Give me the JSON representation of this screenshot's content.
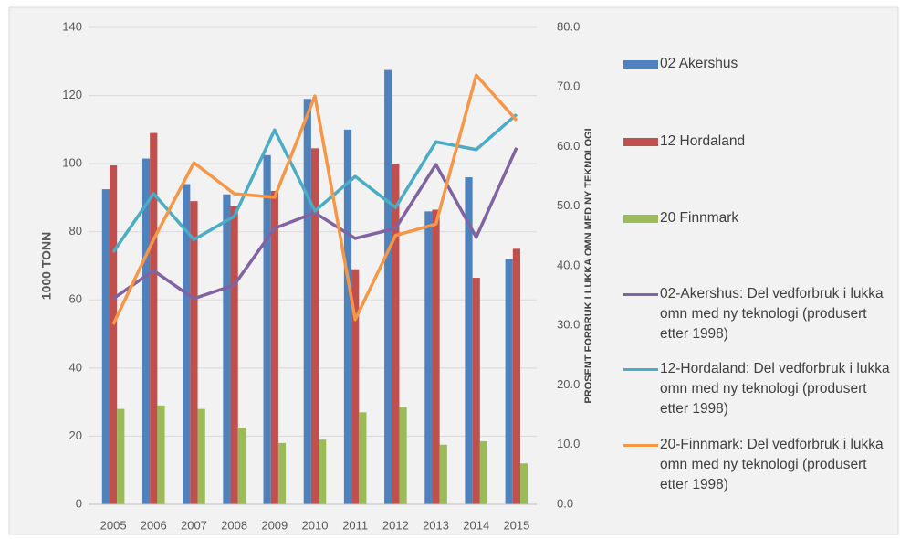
{
  "chart_data": {
    "type": "bar",
    "ylabel": "1000 TONN",
    "y2label": "PROSENT FORBRUK  I LUKKA OMN MED NY TEKNOLOGI",
    "categories": [
      "2005",
      "2006",
      "2007",
      "2008",
      "2009",
      "2010",
      "2011",
      "2012",
      "2013",
      "2014",
      "2015"
    ],
    "ylim": [
      0,
      140
    ],
    "yticks": [
      0,
      20,
      40,
      60,
      80,
      100,
      120,
      140
    ],
    "y2lim": [
      0,
      80
    ],
    "y2ticks": [
      {
        "value": 0,
        "label": "0.0"
      },
      {
        "value": 10,
        "label": "10.0"
      },
      {
        "value": 20,
        "label": "20.0"
      },
      {
        "value": 30,
        "label": "30.0"
      },
      {
        "value": 40,
        "label": "40.0"
      },
      {
        "value": 50,
        "label": "50.0"
      },
      {
        "value": 60,
        "label": "60.0"
      },
      {
        "value": 70,
        "label": "70.0"
      },
      {
        "value": 80,
        "label": "80.0"
      }
    ],
    "grid": true,
    "series": [
      {
        "name": "02 Akershus",
        "type": "bar",
        "color": "#4f81bd",
        "values": [
          92.5,
          101.5,
          94,
          91,
          102.5,
          119,
          110,
          127.5,
          86,
          96,
          72
        ]
      },
      {
        "name": "12 Hordaland",
        "type": "bar",
        "color": "#c0504d",
        "values": [
          99.5,
          109,
          89,
          87.5,
          92,
          104.5,
          69,
          100,
          86.5,
          66.5,
          75
        ]
      },
      {
        "name": "20 Finnmark",
        "type": "bar",
        "color": "#9bbb59",
        "values": [
          28,
          29,
          28,
          22.5,
          18,
          19,
          27,
          28.5,
          17.5,
          18.5,
          12
        ]
      },
      {
        "name": "02-Akershus: Del vedforbruk i lukka omn med ny teknologi (produsert etter 1998)",
        "type": "line",
        "axis": "y2",
        "color": "#8064a2",
        "values": [
          34.5,
          39.2,
          34.5,
          36.8,
          46.3,
          48.9,
          44.6,
          46.3,
          57,
          44.8,
          59.8
        ]
      },
      {
        "name": "12-Hordaland: Del vedforbruk i lukka omn med ny teknologi (produsert etter 1998)",
        "type": "line",
        "axis": "y2",
        "color": "#4bacc6",
        "values": [
          42.3,
          52.1,
          44.4,
          48.3,
          62.8,
          49.2,
          55,
          49.8,
          60.8,
          59.5,
          65.4
        ]
      },
      {
        "name": "20-Finnmark: Del vedforbruk i lukka omn med ny teknologi (produsert etter 1998)",
        "type": "line",
        "axis": "y2",
        "color": "#f79646",
        "values": [
          30.2,
          44.4,
          57.3,
          52.1,
          51.5,
          68.5,
          31,
          45.1,
          47,
          72,
          64.4
        ]
      }
    ]
  }
}
